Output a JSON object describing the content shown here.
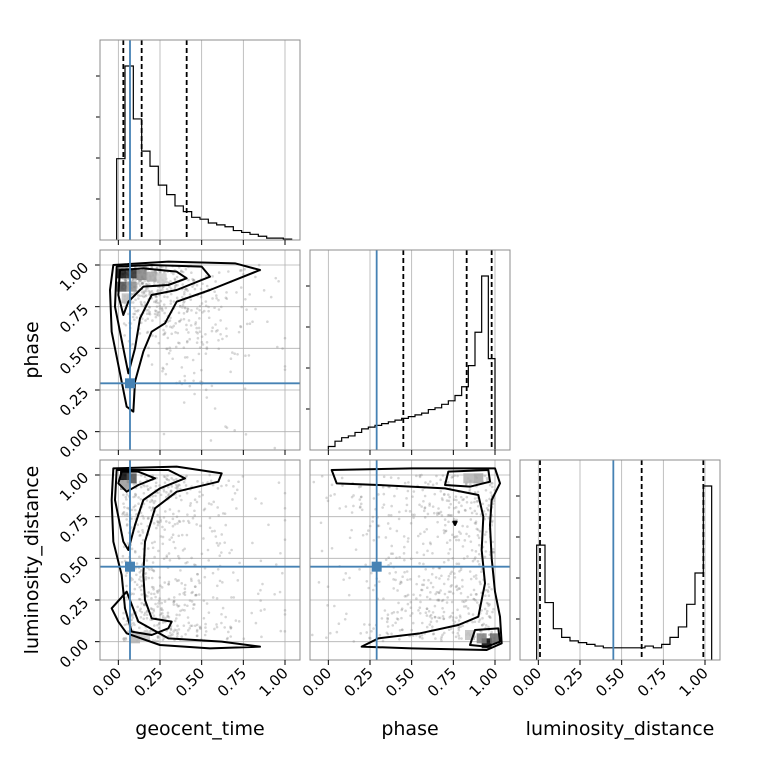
{
  "colors": {
    "truth": "#4682b4",
    "background": "#ffffff",
    "hist": "#000000"
  },
  "chart_data": {
    "type": "corner",
    "parameters": [
      "geocent_time",
      "phase",
      "luminosity_distance"
    ],
    "axis_labels": {
      "x": [
        "geocent_time",
        "phase",
        "luminosity_distance"
      ],
      "y": [
        "phase",
        "luminosity_distance"
      ]
    },
    "ticks": [
      0.0,
      0.25,
      0.5,
      0.75,
      1.0
    ],
    "tick_labels": [
      "0.00",
      "0.25",
      "0.50",
      "0.75",
      "1.00"
    ],
    "ranges": [
      [
        -0.11,
        1.09
      ],
      [
        -0.11,
        1.09
      ],
      [
        -0.11,
        1.09
      ]
    ],
    "grid": true,
    "truths": [
      0.07,
      0.29,
      0.45
    ],
    "marginals": {
      "geocent_time": {
        "bins": [
          -0.01,
          0.04,
          0.09,
          0.14,
          0.19,
          0.24,
          0.29,
          0.34,
          0.39,
          0.44,
          0.49,
          0.54,
          0.59,
          0.64,
          0.69,
          0.74,
          0.79,
          0.84,
          0.89,
          0.94,
          0.99,
          1.04
        ],
        "heights": [
          0.43,
          0.92,
          0.64,
          0.47,
          0.39,
          0.29,
          0.24,
          0.18,
          0.15,
          0.12,
          0.11,
          0.09,
          0.08,
          0.07,
          0.05,
          0.04,
          0.03,
          0.02,
          0.01,
          0.01,
          0.005
        ],
        "quantiles": [
          0.03,
          0.14,
          0.41
        ]
      },
      "phase": {
        "bins": [
          0.0,
          0.04,
          0.08,
          0.12,
          0.16,
          0.2,
          0.24,
          0.28,
          0.32,
          0.36,
          0.4,
          0.44,
          0.48,
          0.52,
          0.56,
          0.6,
          0.64,
          0.68,
          0.72,
          0.76,
          0.8,
          0.84,
          0.88,
          0.92,
          0.96,
          1.0
        ],
        "heights": [
          0.02,
          0.05,
          0.07,
          0.08,
          0.1,
          0.12,
          0.13,
          0.14,
          0.15,
          0.16,
          0.17,
          0.18,
          0.19,
          0.2,
          0.21,
          0.23,
          0.24,
          0.26,
          0.28,
          0.31,
          0.36,
          0.48,
          0.67,
          0.99,
          0.52
        ],
        "quantiles": [
          0.45,
          0.83,
          0.98
        ]
      },
      "luminosity_distance": {
        "bins": [
          -0.01,
          0.04,
          0.09,
          0.14,
          0.19,
          0.24,
          0.29,
          0.34,
          0.39,
          0.44,
          0.49,
          0.54,
          0.59,
          0.64,
          0.69,
          0.74,
          0.79,
          0.84,
          0.89,
          0.94,
          0.99,
          1.04
        ],
        "heights": [
          0.66,
          0.33,
          0.18,
          0.13,
          0.11,
          0.1,
          0.09,
          0.08,
          0.07,
          0.07,
          0.07,
          0.07,
          0.07,
          0.08,
          0.07,
          0.09,
          0.13,
          0.19,
          0.32,
          0.5,
          1.0
        ],
        "quantiles": [
          0.01,
          0.62,
          0.99
        ]
      }
    },
    "joints": [
      {
        "x": "geocent_time",
        "y": "phase",
        "hist2d": [
          {
            "x": 0.02,
            "y": 0.95,
            "level": 0.95
          },
          {
            "x": 0.08,
            "y": 0.95,
            "level": 0.85
          },
          {
            "x": 0.14,
            "y": 0.94,
            "level": 0.5
          },
          {
            "x": 0.2,
            "y": 0.93,
            "level": 0.35
          },
          {
            "x": 0.26,
            "y": 0.92,
            "level": 0.2
          },
          {
            "x": 0.02,
            "y": 0.87,
            "level": 0.7
          },
          {
            "x": 0.08,
            "y": 0.87,
            "level": 0.45
          },
          {
            "x": 0.05,
            "y": 0.8,
            "level": 0.25
          }
        ],
        "contours": [
          [
            [
              0.01,
              0.97
            ],
            [
              0.15,
              0.98
            ],
            [
              0.35,
              0.96
            ],
            [
              0.41,
              0.92
            ],
            [
              0.3,
              0.88
            ],
            [
              0.15,
              0.87
            ],
            [
              0.06,
              0.78
            ],
            [
              0.03,
              0.7
            ],
            [
              0.0,
              0.82
            ],
            [
              0.01,
              0.97
            ]
          ],
          [
            [
              -0.01,
              0.99
            ],
            [
              0.2,
              1.0
            ],
            [
              0.5,
              0.99
            ],
            [
              0.55,
              0.93
            ],
            [
              0.35,
              0.85
            ],
            [
              0.2,
              0.82
            ],
            [
              0.13,
              0.68
            ],
            [
              0.1,
              0.5
            ],
            [
              0.06,
              0.35
            ],
            [
              0.04,
              0.45
            ],
            [
              -0.02,
              0.75
            ],
            [
              -0.01,
              0.99
            ]
          ],
          [
            [
              -0.03,
              1.0
            ],
            [
              0.3,
              1.02
            ],
            [
              0.7,
              1.01
            ],
            [
              0.85,
              0.97
            ],
            [
              0.55,
              0.85
            ],
            [
              0.35,
              0.78
            ],
            [
              0.28,
              0.65
            ],
            [
              0.2,
              0.6
            ],
            [
              0.15,
              0.48
            ],
            [
              0.1,
              0.3
            ],
            [
              0.09,
              0.12
            ],
            [
              0.05,
              0.15
            ],
            [
              0.02,
              0.3
            ],
            [
              -0.04,
              0.6
            ],
            [
              -0.05,
              0.85
            ],
            [
              -0.03,
              1.0
            ]
          ]
        ]
      },
      {
        "x": "geocent_time",
        "y": "luminosity_distance",
        "hist2d": [
          {
            "x": 0.04,
            "y": 1.0,
            "level": 1.0
          },
          {
            "x": 0.08,
            "y": 0.98,
            "level": 0.7
          },
          {
            "x": 0.04,
            "y": 0.94,
            "level": 0.4
          },
          {
            "x": 0.1,
            "y": 0.02,
            "level": 0.3
          },
          {
            "x": 0.16,
            "y": 0.03,
            "level": 0.2
          }
        ],
        "contours": [
          [
            [
              0.02,
              1.02
            ],
            [
              0.12,
              1.02
            ],
            [
              0.22,
              0.98
            ],
            [
              0.12,
              0.94
            ],
            [
              0.05,
              0.9
            ],
            [
              0.0,
              0.95
            ],
            [
              0.02,
              1.02
            ]
          ],
          [
            [
              -0.01,
              1.03
            ],
            [
              0.3,
              1.03
            ],
            [
              0.4,
              0.98
            ],
            [
              0.25,
              0.92
            ],
            [
              0.15,
              0.85
            ],
            [
              0.1,
              0.7
            ],
            [
              0.06,
              0.55
            ],
            [
              0.03,
              0.6
            ],
            [
              -0.02,
              0.85
            ],
            [
              -0.01,
              1.03
            ]
          ],
          [
            [
              -0.03,
              1.04
            ],
            [
              0.35,
              1.05
            ],
            [
              0.62,
              1.01
            ],
            [
              0.6,
              0.96
            ],
            [
              0.35,
              0.9
            ],
            [
              0.22,
              0.8
            ],
            [
              0.16,
              0.6
            ],
            [
              0.15,
              0.4
            ],
            [
              0.16,
              0.25
            ],
            [
              0.2,
              0.14
            ],
            [
              0.32,
              0.12
            ],
            [
              0.3,
              0.08
            ],
            [
              0.2,
              0.04
            ],
            [
              0.08,
              0.06
            ],
            [
              0.04,
              0.2
            ],
            [
              0.02,
              0.4
            ],
            [
              -0.03,
              0.6
            ],
            [
              -0.04,
              0.85
            ],
            [
              -0.03,
              1.04
            ]
          ],
          [
            [
              -0.04,
              0.2
            ],
            [
              0.0,
              0.12
            ],
            [
              0.05,
              0.05
            ],
            [
              0.25,
              -0.02
            ],
            [
              0.55,
              -0.04
            ],
            [
              0.85,
              -0.03
            ],
            [
              0.62,
              0.0
            ],
            [
              0.3,
              0.02
            ],
            [
              0.12,
              0.12
            ],
            [
              0.05,
              0.3
            ],
            [
              -0.04,
              0.2
            ]
          ]
        ]
      },
      {
        "x": "phase",
        "y": "luminosity_distance",
        "hist2d": [
          {
            "x": 0.95,
            "y": -0.01,
            "level": 1.0
          },
          {
            "x": 1.0,
            "y": 0.02,
            "level": 0.6
          },
          {
            "x": 0.92,
            "y": 0.02,
            "level": 0.5
          },
          {
            "x": 0.85,
            "y": 0.04,
            "level": 0.25
          },
          {
            "x": 0.9,
            "y": 0.98,
            "level": 0.35
          },
          {
            "x": 0.84,
            "y": 0.98,
            "level": 0.3
          }
        ],
        "contours": [
          [
            [
              0.88,
              0.07
            ],
            [
              1.02,
              0.08
            ],
            [
              1.03,
              0.0
            ],
            [
              0.95,
              -0.03
            ],
            [
              0.85,
              -0.02
            ],
            [
              0.88,
              0.07
            ]
          ],
          [
            [
              0.72,
              1.02
            ],
            [
              0.96,
              1.03
            ],
            [
              0.97,
              0.96
            ],
            [
              0.85,
              0.93
            ],
            [
              0.7,
              0.94
            ],
            [
              0.72,
              1.02
            ]
          ],
          [
            [
              0.02,
              1.03
            ],
            [
              0.5,
              1.04
            ],
            [
              1.0,
              1.04
            ],
            [
              1.03,
              0.95
            ],
            [
              0.98,
              0.85
            ],
            [
              0.97,
              0.7
            ],
            [
              0.98,
              0.5
            ],
            [
              1.0,
              0.3
            ],
            [
              1.03,
              0.15
            ],
            [
              1.04,
              -0.01
            ],
            [
              0.95,
              -0.05
            ],
            [
              0.5,
              -0.04
            ],
            [
              0.2,
              -0.03
            ],
            [
              0.3,
              0.02
            ],
            [
              0.55,
              0.05
            ],
            [
              0.78,
              0.1
            ],
            [
              0.9,
              0.15
            ],
            [
              0.94,
              0.35
            ],
            [
              0.92,
              0.55
            ],
            [
              0.93,
              0.75
            ],
            [
              0.9,
              0.88
            ],
            [
              0.7,
              0.92
            ],
            [
              0.3,
              0.94
            ],
            [
              0.05,
              0.95
            ],
            [
              0.02,
              1.03
            ]
          ],
          [
            [
              0.75,
              0.72
            ],
            [
              0.77,
              0.72
            ],
            [
              0.76,
              0.7
            ],
            [
              0.75,
              0.72
            ]
          ]
        ]
      }
    ],
    "scatter_density": [
      {
        "x": "geocent_time",
        "y": "phase",
        "n": 600
      },
      {
        "x": "geocent_time",
        "y": "luminosity_distance",
        "n": 650
      },
      {
        "x": "phase",
        "y": "luminosity_distance",
        "n": 650
      }
    ]
  }
}
